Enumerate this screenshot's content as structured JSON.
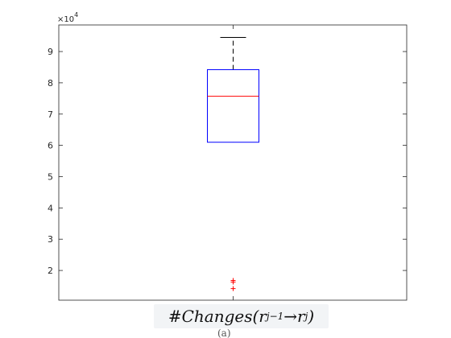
{
  "chart_data": {
    "type": "boxplot",
    "title": "",
    "xlabel": "#Changes(r_{j-1} → r_j)",
    "ylabel": "",
    "y_exponent_label": "×10",
    "y_exponent_power": "4",
    "ylim": [
      1.05,
      9.85
    ],
    "yticks": [
      2,
      3,
      4,
      5,
      6,
      7,
      8,
      9
    ],
    "ytick_labels": [
      "2",
      "3",
      "4",
      "5",
      "6",
      "7",
      "8",
      "9"
    ],
    "grid": false,
    "box": {
      "whisker_low": 6.1,
      "q1": 6.1,
      "median": 7.57,
      "q3": 8.42,
      "whisker_high": 9.45,
      "outliers": [
        1.68,
        1.63,
        1.42
      ]
    },
    "colors": {
      "box": "#0000ff",
      "median": "#ff0000",
      "whisker": "#000000",
      "outlier": "#ff0000",
      "axes": "#262626"
    }
  },
  "xlabel_parts": {
    "prefix": "#Changes(",
    "r1": "r",
    "sub1": "j−1",
    "arrow": " → ",
    "r2": "r",
    "sub2": "j",
    "suffix": ")"
  },
  "peek_text": "(a)"
}
